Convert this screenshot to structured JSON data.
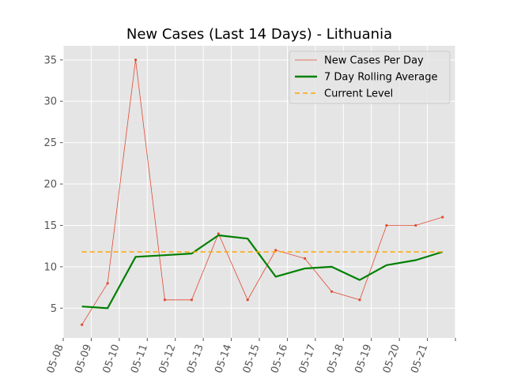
{
  "chart_data": {
    "type": "line",
    "title": "New Cases (Last 14 Days) - Lithuania",
    "xlabel": "",
    "ylabel": "",
    "x": [
      "05-08",
      "05-09",
      "05-10",
      "05-11",
      "05-12",
      "05-13",
      "05-14",
      "05-15",
      "05-16",
      "05-17",
      "05-18",
      "05-19",
      "05-20",
      "05-21"
    ],
    "x_range": [
      "05-08",
      "05-22"
    ],
    "ylim": [
      1.4,
      36.7
    ],
    "y_ticks": [
      5,
      10,
      15,
      20,
      25,
      30,
      35
    ],
    "grid": true,
    "legend_position": "top-right",
    "series": [
      {
        "name": "New Cases Per Day",
        "x": [
          "05-08 16:00",
          "05-09 14:00",
          "05-10 14:00",
          "05-11 15:00",
          "05-12 14:00",
          "05-13 13:00",
          "05-14 14:00",
          "05-15 14:00",
          "05-16 15:00",
          "05-17 14:00",
          "05-18 14:00",
          "05-19 13:00",
          "05-20 14:00",
          "05-21 13:00"
        ],
        "values": [
          3,
          8,
          35,
          6,
          6,
          14,
          6,
          12,
          11,
          7,
          6,
          15,
          15,
          16
        ],
        "color": "#e24a33",
        "style": "thin-line-with-points"
      },
      {
        "name": "7 Day Rolling Average",
        "x": [
          "05-08 16:00",
          "05-09 14:00",
          "05-10 14:00",
          "05-11 15:00",
          "05-12 14:00",
          "05-13 13:00",
          "05-14 14:00",
          "05-15 14:00",
          "05-16 15:00",
          "05-17 14:00",
          "05-18 14:00",
          "05-19 13:00",
          "05-20 14:00",
          "05-21 13:00"
        ],
        "values": [
          5.2,
          5.0,
          11.2,
          11.4,
          11.6,
          13.8,
          13.4,
          8.8,
          9.8,
          10.0,
          8.4,
          10.2,
          10.8,
          11.8
        ],
        "color": "#008000",
        "style": "thick-line"
      },
      {
        "name": "Current Level",
        "x": [
          "05-08 16:00",
          "05-21 13:00"
        ],
        "values": [
          11.8,
          11.8
        ],
        "color": "#ffa500",
        "style": "dashed-line"
      }
    ],
    "colors": {
      "background": "#e5e5e5",
      "grid": "#ffffff"
    }
  }
}
